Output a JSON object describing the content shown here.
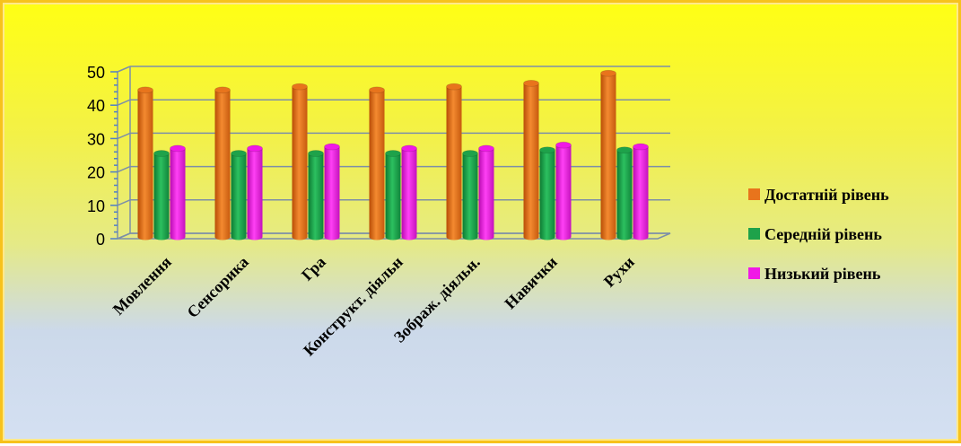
{
  "chart_data": {
    "type": "bar",
    "title": "",
    "xlabel": "",
    "ylabel": "",
    "ylim": [
      0,
      50
    ],
    "yticks": [
      0,
      10,
      20,
      30,
      40,
      50
    ],
    "grid": true,
    "legend_position": "right",
    "categories": [
      "Мовлення",
      "Сенсорика",
      "Гра",
      "Конструкт. діяльн",
      "Зображ. діяльн.",
      "Навички",
      "Рухи"
    ],
    "series": [
      {
        "name": "Достатній рівень",
        "color": "#e8741c",
        "values": [
          44,
          44,
          45,
          44,
          45,
          46,
          49
        ]
      },
      {
        "name": "Середній рівень",
        "color": "#1ea24a",
        "values": [
          25,
          25,
          25,
          25,
          25,
          26,
          26
        ]
      },
      {
        "name": "Низький рівень",
        "color": "#f019e6",
        "values": [
          26.5,
          26.5,
          27,
          26.5,
          26.5,
          27.5,
          27
        ]
      }
    ]
  }
}
